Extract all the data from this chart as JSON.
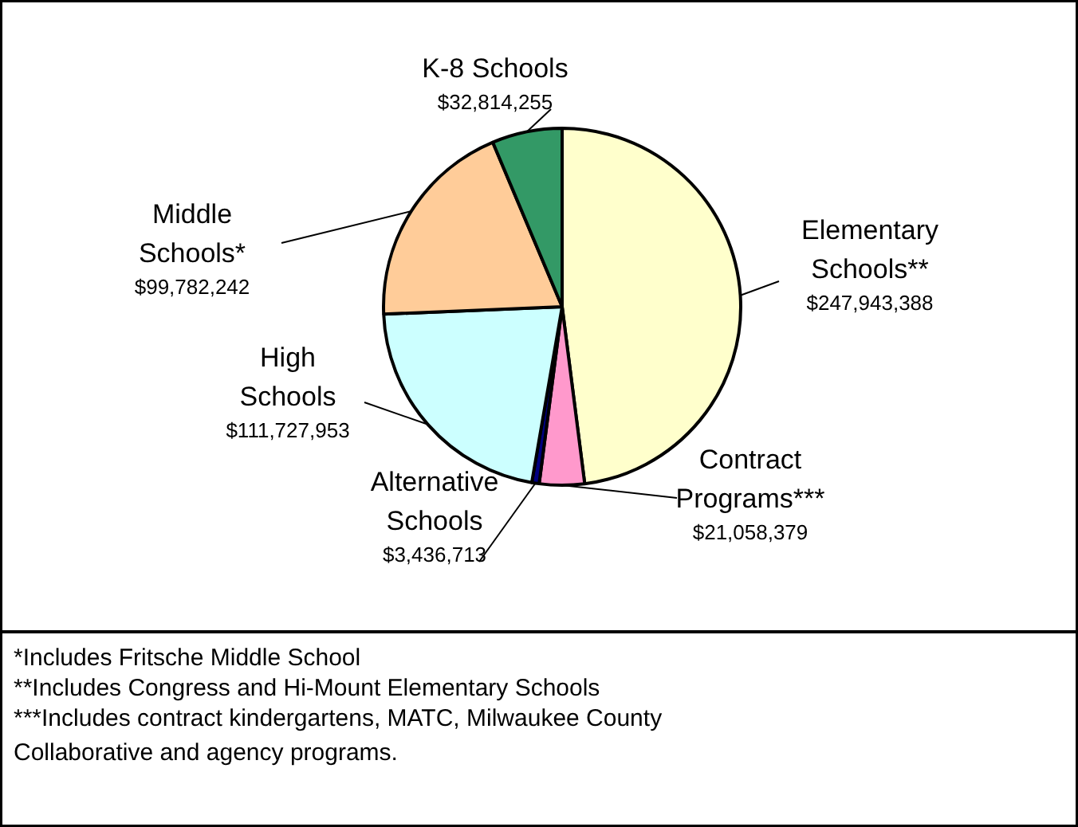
{
  "chart_data": {
    "type": "pie",
    "categories": [
      "Elementary\nSchools**",
      "Contract\nPrograms***",
      "Alternative\nSchools",
      "High\nSchools",
      "Middle\nSchools*",
      "K-8 Schools"
    ],
    "values": [
      247943388,
      21058379,
      3436713,
      111727953,
      99782242,
      32814255
    ],
    "colors": [
      "#ffffcc",
      "#ff99cc",
      "#000080",
      "#ccffff",
      "#ffcc99",
      "#339966"
    ],
    "value_labels": [
      "$247,943,388",
      "$21,058,379",
      "$3,436,713",
      "$111,727,953",
      "$99,782,242",
      "$32,814,255"
    ],
    "annotations": [
      "*Includes Fritsche Middle School",
      "**Includes Congress and Hi-Mount Elementary Schools",
      "***Includes contract kindergartens, MATC, Milwaukee County\n   Collaborative and agency programs."
    ]
  }
}
